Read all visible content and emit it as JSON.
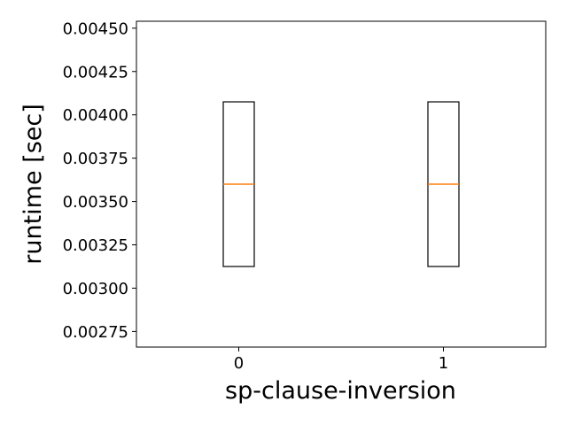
{
  "chart_data": {
    "type": "box",
    "xlabel": "sp-clause-inversion",
    "ylabel": "runtime [sec]",
    "ylim": [
      0.00266,
      0.00454
    ],
    "xlim": [
      -0.5,
      1.5
    ],
    "x_ticks": [
      0,
      1
    ],
    "x_tick_labels": [
      "0",
      "1"
    ],
    "y_ticks": [
      0.00275,
      0.003,
      0.00325,
      0.0035,
      0.00375,
      0.004,
      0.00425,
      0.0045
    ],
    "y_tick_labels": [
      "0.00275",
      "0.00300",
      "0.00325",
      "0.00350",
      "0.00375",
      "0.00400",
      "0.00425",
      "0.00450"
    ],
    "grid": false,
    "boxes": [
      {
        "x": 0,
        "q1": 0.003125,
        "median": 0.0036,
        "q3": 0.004075
      },
      {
        "x": 1,
        "q1": 0.003125,
        "median": 0.0036,
        "q3": 0.004075
      }
    ],
    "box_color": "#000000",
    "median_color": "#ff7f0e"
  }
}
